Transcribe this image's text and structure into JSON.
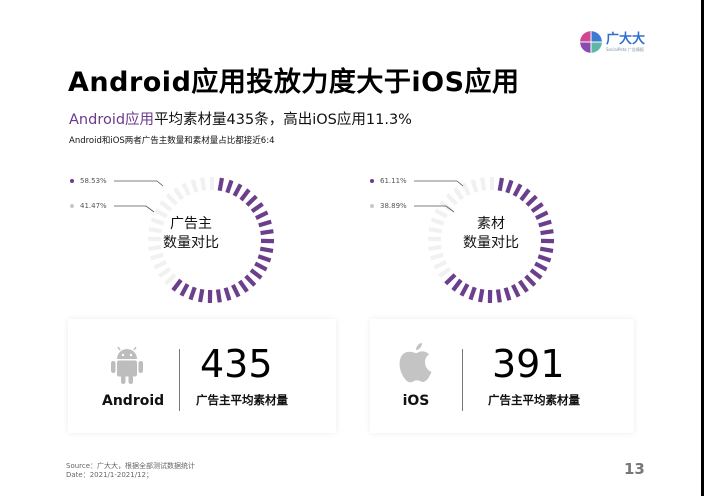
{
  "header": {
    "logo_cn": "广大大",
    "logo_en": "SocialPeta 广告情报"
  },
  "title": "Android应用投放力度大于iOS应用",
  "subtitle": {
    "highlight": "Android应用",
    "rest": "平均素材量435条，高出iOS应用11.3%"
  },
  "note": "Android和iOS两者广告主数量和素材量占比都接近6:4",
  "donuts": [
    {
      "label_line1": "广告主",
      "label_line2": "数量对比",
      "legend": [
        {
          "value": "58.53%",
          "color": "#6b3f8c"
        },
        {
          "value": "41.47%",
          "color": "#c8c8c8"
        }
      ]
    },
    {
      "label_line1": "素材",
      "label_line2": "数量对比",
      "legend": [
        {
          "value": "61.11%",
          "color": "#6b3f8c"
        },
        {
          "value": "38.89%",
          "color": "#c8c8c8"
        }
      ]
    }
  ],
  "cards": [
    {
      "os": "Android",
      "icon": "android-icon",
      "value": "435",
      "label": "广告主平均素材量"
    },
    {
      "os": "iOS",
      "icon": "apple-icon",
      "value": "391",
      "label": "广告主平均素材量"
    }
  ],
  "source": {
    "line1": "Source：广大大，根据全部测试数据统计",
    "line2": "Date：2021/1-2021/12；"
  },
  "page_number": "13",
  "colors": {
    "accent": "#6b3f8c",
    "secondary": "#e8e8e8",
    "logo_blue": "#2f6fd1"
  },
  "chart_data": [
    {
      "type": "pie",
      "title": "广告主数量对比",
      "categories": [
        "Android",
        "iOS"
      ],
      "values": [
        58.53,
        41.47
      ],
      "unit": "%",
      "style": "segmented donut"
    },
    {
      "type": "pie",
      "title": "素材数量对比",
      "categories": [
        "Android",
        "iOS"
      ],
      "values": [
        61.11,
        38.89
      ],
      "unit": "%",
      "style": "segmented donut"
    }
  ]
}
